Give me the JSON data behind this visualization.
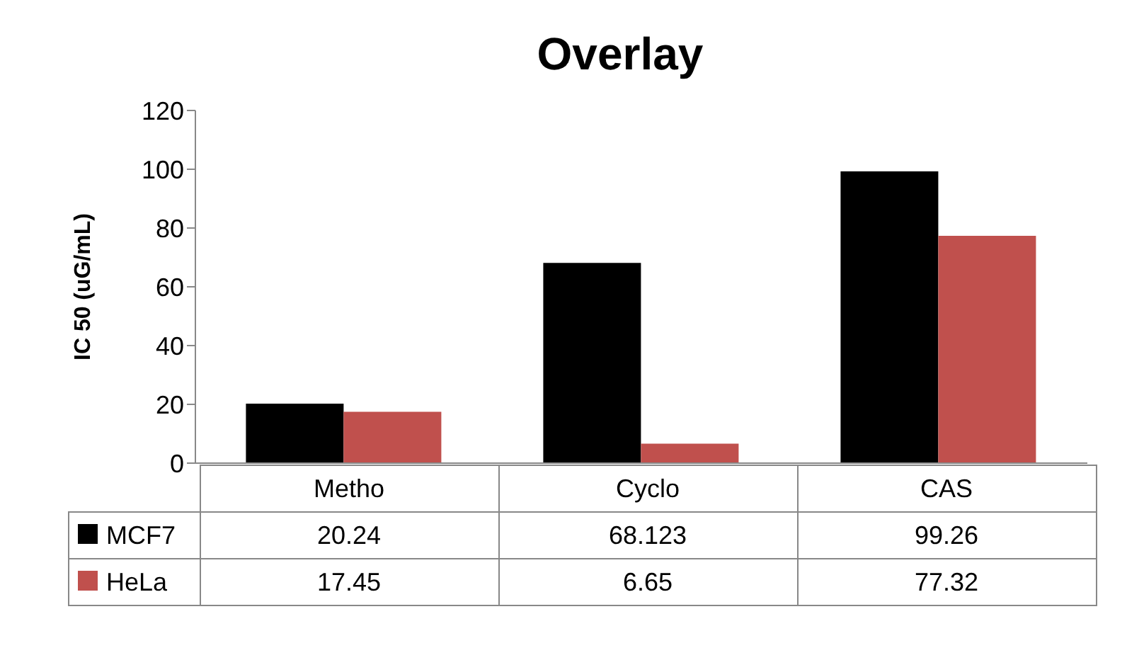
{
  "chart_data": {
    "type": "bar",
    "title": "Overlay",
    "ylabel": "IC 50 (uG/mL)",
    "categories": [
      "Metho",
      "Cyclo",
      "CAS"
    ],
    "series": [
      {
        "name": "MCF7",
        "color": "#000000",
        "values": [
          20.24,
          68.123,
          99.26
        ]
      },
      {
        "name": "HeLa",
        "color": "#c0504d",
        "values": [
          17.45,
          6.65,
          77.32
        ]
      }
    ],
    "ylim": [
      0,
      120
    ],
    "yticks": [
      0,
      20,
      40,
      60,
      80,
      100,
      120
    ],
    "grid": false,
    "legend": "bottom",
    "data_labels": true
  }
}
